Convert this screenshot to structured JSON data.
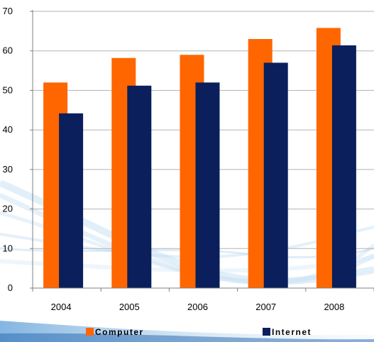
{
  "chart_data": {
    "type": "bar",
    "title": "",
    "xlabel": "",
    "ylabel": "",
    "categories": [
      "2004",
      "2005",
      "2006",
      "2007",
      "2008"
    ],
    "series": [
      {
        "name": "Computer",
        "values": [
          52,
          58.2,
          59,
          63,
          65.8
        ],
        "color": "#FF6600"
      },
      {
        "name": "Internet",
        "values": [
          44.2,
          51.2,
          52,
          57,
          61.4
        ],
        "color": "#0A1F5C"
      }
    ],
    "ylim": [
      0,
      70
    ],
    "yticks": [
      0,
      10,
      20,
      30,
      40,
      50,
      60,
      70
    ],
    "grid": true,
    "legend_position": "bottom"
  }
}
